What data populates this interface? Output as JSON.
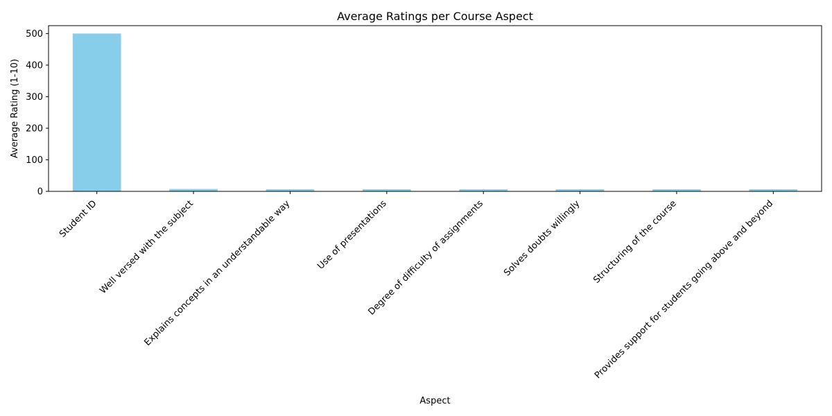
{
  "chart_data": {
    "type": "bar",
    "title": "Average Ratings per Course Aspect",
    "xlabel": "Aspect",
    "ylabel": "Average Rating (1-10)",
    "categories": [
      "Student ID",
      "Well versed with the subject",
      "Explains concepts in an understandable way",
      "Use of presentations",
      "Degree of difficulty of assignments",
      "Solves doubts willingly",
      "Structuring of the course",
      "Provides support for students going above and beyond"
    ],
    "values": [
      500,
      7.5,
      6.8,
      6.6,
      6.5,
      6.7,
      6.6,
      6.6
    ],
    "ylim": [
      0,
      525
    ],
    "yticks": [
      0,
      100,
      200,
      300,
      400,
      500
    ],
    "bar_color": "#87CEEB",
    "grid": false,
    "legend": "none"
  }
}
